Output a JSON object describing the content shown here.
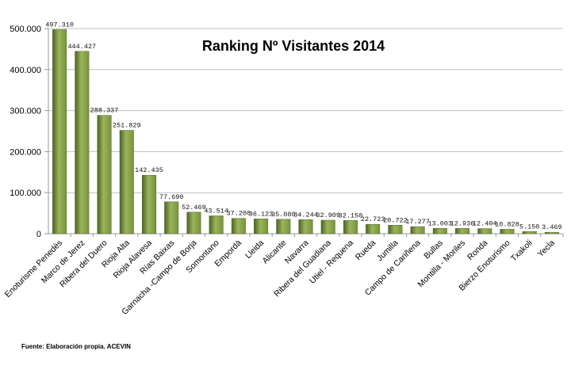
{
  "colors": {
    "bar": "#77933c",
    "bar_light": "#9ab55a",
    "bar_dark": "#4f6228",
    "grid": "#bfbfbf",
    "axis": "#9a9a9a"
  },
  "source_text": "Fuente: Elaboración propia. ACEVIN",
  "chart_data": {
    "type": "bar",
    "title": "Ranking Nº Visitantes 2014",
    "xlabel": "",
    "ylabel": "",
    "ylim": [
      0,
      500000
    ],
    "yticks": [
      0,
      100000,
      200000,
      300000,
      400000,
      500000
    ],
    "ytick_labels": [
      "0",
      "100.000",
      "200.000",
      "300.000",
      "400.000",
      "500.000"
    ],
    "grid": true,
    "categories": [
      "Enoturisme Penedès",
      "Marco de Jerez",
      "Ribera del Duero",
      "Rioja Alta",
      "Rioja Alavesa",
      "Rías Baixas",
      "Garnacha -Campo de Borja",
      "Somontano",
      "Empordà",
      "Lleida",
      "Alicante",
      "Navarra",
      "Ribera del Guadiana",
      "Utiel - Requena",
      "Rueda",
      "Jumilla",
      "Campo de Cariñena",
      "Bullas",
      "Montilla - Moriles",
      "Ronda",
      "Bierzo Enoturismo",
      "Txakoli",
      "Yecla"
    ],
    "values": [
      497310,
      444427,
      288337,
      251829,
      142435,
      77690,
      52469,
      43514,
      37200,
      36123,
      35080,
      34244,
      32909,
      32150,
      22723,
      20722,
      17277,
      13003,
      12936,
      12404,
      10828,
      5150,
      3469
    ],
    "value_labels": [
      "497.310",
      "444.427",
      "288.337",
      "251.829",
      "142.435",
      "77.690",
      "52.469",
      "43.514",
      "37.200",
      "36.123",
      "35.080",
      "34.244",
      "32.909",
      "32.150",
      "22.723",
      "20.722",
      "17.277",
      "13.003",
      "12.936",
      "12.404",
      "10.828",
      "5.150",
      "3.469"
    ]
  }
}
